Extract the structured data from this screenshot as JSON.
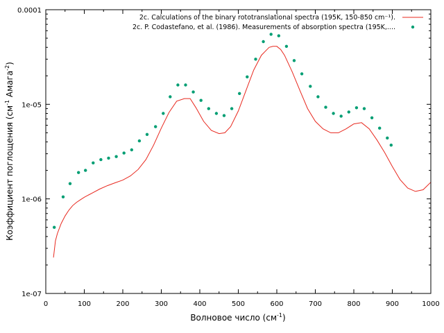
{
  "chart_data": {
    "type": "line",
    "xlabel_main": "Волновое число (см",
    "xlabel_sup": "-1",
    "xlabel_end": ")",
    "ylabel_main": "Коэффициент поглощения (см",
    "ylabel_sup1": "-1",
    "ylabel_mid": " Амага",
    "ylabel_sup2": "-2",
    "ylabel_end": ")",
    "xlim": [
      0,
      1000
    ],
    "ylim": [
      1e-07,
      0.0001
    ],
    "y_scale": "log",
    "x_ticks": [
      0,
      100,
      200,
      300,
      400,
      500,
      600,
      700,
      800,
      900,
      1000
    ],
    "x_tick_labels": [
      "0",
      "100",
      "200",
      "300",
      "400",
      "500",
      "600",
      "700",
      "800",
      "900",
      "1000"
    ],
    "y_ticks": [
      1e-07,
      1e-06,
      1e-05,
      0.0001
    ],
    "y_tick_labels": [
      "1e-07",
      "1e-06",
      "1e-05",
      "0.0001"
    ],
    "grid": false,
    "legend_position": "top-right",
    "series": [
      {
        "name": "2c. Calculations of the binary rototranslational spectra  (195K, 150-850 cm⁻¹).",
        "type": "line",
        "color": "#e8281e",
        "x": [
          20,
          25,
          30,
          40,
          50,
          60,
          70,
          80,
          90,
          100,
          120,
          140,
          160,
          180,
          200,
          220,
          240,
          260,
          280,
          300,
          320,
          340,
          360,
          375,
          390,
          410,
          430,
          450,
          465,
          480,
          500,
          520,
          540,
          560,
          580,
          590,
          600,
          610,
          620,
          640,
          660,
          680,
          700,
          720,
          740,
          760,
          780,
          800,
          820,
          840,
          860,
          880,
          900,
          920,
          940,
          960,
          980,
          1000
        ],
        "y": [
          2.4e-07,
          3.6e-07,
          4.3e-07,
          5.5e-07,
          6.6e-07,
          7.6e-07,
          8.5e-07,
          9.2e-07,
          9.8e-07,
          1.04e-06,
          1.15e-06,
          1.27e-06,
          1.38e-06,
          1.48e-06,
          1.58e-06,
          1.75e-06,
          2.05e-06,
          2.6e-06,
          3.7e-06,
          5.6e-06,
          8.2e-06,
          1.08e-05,
          1.15e-05,
          1.15e-05,
          9.2e-06,
          6.6e-06,
          5.3e-06,
          4.9e-06,
          5e-06,
          5.8e-06,
          8.5e-06,
          1.4e-05,
          2.3e-05,
          3.3e-05,
          4e-05,
          4.1e-05,
          4.1e-05,
          3.8e-05,
          3.3e-05,
          2.2e-05,
          1.4e-05,
          9e-06,
          6.6e-06,
          5.5e-06,
          5e-06,
          5e-06,
          5.5e-06,
          6.2e-06,
          6.4e-06,
          5.5e-06,
          4.2e-06,
          3.1e-06,
          2.2e-06,
          1.6e-06,
          1.3e-06,
          1.2e-06,
          1.25e-06,
          1.5e-06
        ]
      },
      {
        "name": "2c. P. Codastefano, et al. (1986). Measurements of absorption spectra (195K,....",
        "type": "scatter",
        "color": "#009e73",
        "x": [
          22,
          45,
          63,
          85,
          103,
          123,
          143,
          163,
          183,
          203,
          223,
          243,
          263,
          285,
          305,
          323,
          343,
          363,
          383,
          403,
          423,
          443,
          463,
          483,
          503,
          523,
          545,
          565,
          585,
          605,
          625,
          645,
          665,
          687,
          707,
          727,
          747,
          767,
          787,
          807,
          827,
          847,
          867,
          887,
          897
        ],
        "y": [
          5e-07,
          1.05e-06,
          1.45e-06,
          1.9e-06,
          2e-06,
          2.4e-06,
          2.6e-06,
          2.7e-06,
          2.8e-06,
          3.05e-06,
          3.3e-06,
          4.1e-06,
          4.8e-06,
          5.8e-06,
          8e-06,
          1.2e-05,
          1.6e-05,
          1.6e-05,
          1.35e-05,
          1.1e-05,
          9e-06,
          8e-06,
          7.6e-06,
          9e-06,
          1.3e-05,
          1.95e-05,
          3e-05,
          4.6e-05,
          5.5e-05,
          5.3e-05,
          4.1e-05,
          2.9e-05,
          2.1e-05,
          1.55e-05,
          1.2e-05,
          9.3e-06,
          8e-06,
          7.5e-06,
          8.3e-06,
          9.2e-06,
          9e-06,
          7.2e-06,
          5.6e-06,
          4.4e-06,
          3.7e-06
        ]
      }
    ]
  }
}
